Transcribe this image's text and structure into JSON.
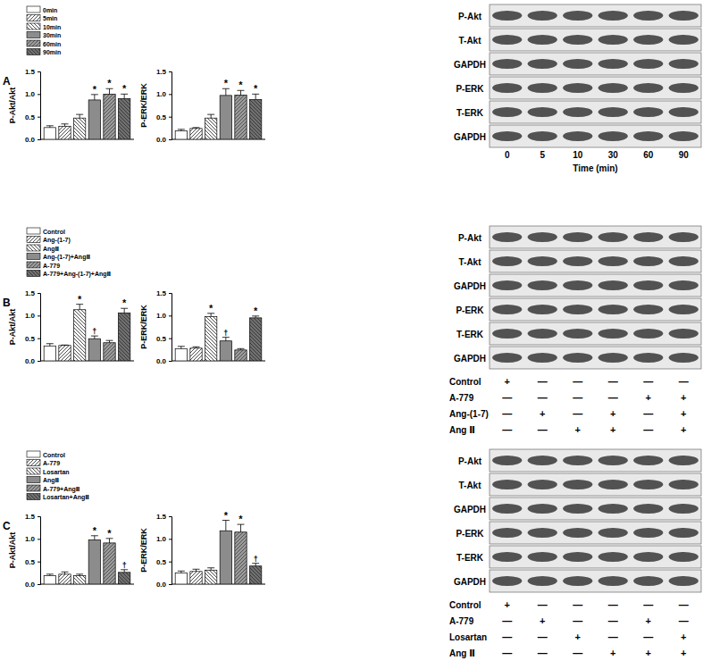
{
  "chart_data": [
    {
      "type": "bar",
      "ylabel": "P-Akt/Akt",
      "categories": [
        "0min",
        "5min",
        "10min",
        "30min",
        "60min",
        "90min"
      ],
      "values": [
        0.26,
        0.29,
        0.47,
        0.87,
        1.0,
        0.9
      ],
      "errors": [
        0.04,
        0.05,
        0.08,
        0.12,
        0.12,
        0.1
      ],
      "significance": [
        null,
        null,
        null,
        "*",
        "*",
        "*"
      ],
      "ylim": [
        0,
        1.5
      ],
      "yticks": [
        {
          "value": 0,
          "label": "0.0"
        },
        {
          "value": 0.5,
          "label": "0.5"
        },
        {
          "value": 1,
          "label": "1.0"
        },
        {
          "value": 1.5,
          "label": "1.5"
        }
      ],
      "legend": "upper left",
      "tick_labels": "y"
    },
    {
      "type": "bar",
      "ylabel": "P-ERK/ERK",
      "values": [
        0.19,
        0.24,
        0.47,
        0.97,
        0.98,
        0.88
      ],
      "errors": [
        0.03,
        0.02,
        0.08,
        0.15,
        0.1,
        0.12
      ],
      "significance": [
        null,
        null,
        null,
        "*",
        "*",
        "*"
      ],
      "ylim": [
        0,
        1.5
      ],
      "yticks": [
        {
          "value": 0,
          "label": "0.0"
        },
        {
          "value": 0.5,
          "label": "0.5"
        },
        {
          "value": 1,
          "label": "1.0"
        },
        {
          "value": 1.5,
          "label": "1.5"
        }
      ],
      "tick_labels": "y"
    },
    {
      "type": "bar",
      "ylabel": "P-Akt/Akt",
      "categories": [
        "Control",
        "Ang-(1-7)",
        "AngⅡ",
        "Ang-(1-7)+AngⅡ",
        "A-779",
        "A-779+Ang-(1-7)+AngⅡ"
      ],
      "values": [
        0.33,
        0.34,
        1.13,
        0.49,
        0.4,
        1.06
      ],
      "errors": [
        0.05,
        0.01,
        0.12,
        0.06,
        0.05,
        0.1
      ],
      "significance": [
        null,
        null,
        "*",
        "†",
        null,
        "*"
      ],
      "ylim": [
        0,
        1.5
      ],
      "yticks": [
        {
          "value": 0,
          "label": "0.0"
        },
        {
          "value": 0.5,
          "label": "0.5"
        },
        {
          "value": 1,
          "label": "1.0"
        },
        {
          "value": 1.5,
          "label": "1.5"
        }
      ],
      "legend": "upper left",
      "tick_labels": "y"
    },
    {
      "type": "bar",
      "ylabel": "P-ERK/ERK",
      "values": [
        0.27,
        0.28,
        0.98,
        0.44,
        0.24,
        0.95
      ],
      "errors": [
        0.05,
        0.03,
        0.07,
        0.08,
        0.03,
        0.04
      ],
      "significance": [
        null,
        null,
        "*",
        "†",
        null,
        "*"
      ],
      "ylim": [
        0,
        1.5
      ],
      "yticks": [
        {
          "value": 0,
          "label": "0.0"
        },
        {
          "value": 0.5,
          "label": "0.5"
        },
        {
          "value": 1,
          "label": "1.0"
        },
        {
          "value": 1.5,
          "label": "1.5"
        }
      ],
      "tick_labels": "y"
    },
    {
      "type": "bar",
      "ylabel": "P-Akt/Akt",
      "categories": [
        "Control",
        "A-779",
        "Losartan",
        "AngⅡ",
        "A-779+AngⅡ",
        "Losartan+AngⅡ"
      ],
      "values": [
        0.19,
        0.22,
        0.19,
        0.98,
        0.91,
        0.26
      ],
      "errors": [
        0.03,
        0.05,
        0.03,
        0.09,
        0.1,
        0.06
      ],
      "significance": [
        null,
        null,
        null,
        "*",
        "*",
        "†"
      ],
      "ylim": [
        0,
        1.5
      ],
      "yticks": [
        {
          "value": 0,
          "label": "0.0"
        },
        {
          "value": 0.5,
          "label": "0.5"
        },
        {
          "value": 1,
          "label": "1.0"
        },
        {
          "value": 1.5,
          "label": "1.5"
        }
      ],
      "legend": "upper left",
      "tick_labels": "y"
    },
    {
      "type": "bar",
      "ylabel": "P-ERK/ERK",
      "values": [
        0.25,
        0.28,
        0.31,
        1.18,
        1.15,
        0.4
      ],
      "errors": [
        0.04,
        0.05,
        0.05,
        0.23,
        0.17,
        0.06
      ],
      "significance": [
        null,
        null,
        null,
        "*",
        "*",
        "†"
      ],
      "ylim": [
        0,
        1.5
      ],
      "yticks": [
        {
          "value": 0,
          "label": "0.0"
        },
        {
          "value": 0.5,
          "label": "0.5"
        },
        {
          "value": 1,
          "label": "1.0"
        },
        {
          "value": 1.5,
          "label": "1.5"
        }
      ],
      "tick_labels": "y"
    }
  ],
  "panels": [
    {
      "letter": "A",
      "blot_rows": [
        "P-Akt",
        "T-Akt",
        "GAPDH",
        "P-ERK",
        "T-ERK",
        "GAPDH"
      ],
      "lanes": [
        "0",
        "5",
        "10",
        "30",
        "60",
        "90"
      ],
      "lane_title": "Time (min)"
    },
    {
      "letter": "B",
      "blot_rows": [
        "P-Akt",
        "T-Akt",
        "GAPDH",
        "P-ERK",
        "T-ERK",
        "GAPDH"
      ],
      "treatments": [
        {
          "label": "Control",
          "signs": [
            "+",
            "—",
            "—",
            "—",
            "—",
            "—"
          ]
        },
        {
          "label": "A-779",
          "signs": [
            "—",
            "—",
            "—",
            "—",
            "+",
            "+"
          ]
        },
        {
          "label": "Ang-(1-7)",
          "signs": [
            "—",
            "+",
            "—",
            "+",
            "—",
            "+"
          ]
        },
        {
          "label": "Ang Ⅱ",
          "signs": [
            "—",
            "—",
            "+",
            "+",
            "—",
            "+"
          ]
        }
      ]
    },
    {
      "letter": "C",
      "blot_rows": [
        "P-Akt",
        "T-Akt",
        "GAPDH",
        "P-ERK",
        "T-ERK",
        "GAPDH"
      ],
      "treatments": [
        {
          "label": "Control",
          "signs": [
            "+",
            "—",
            "—",
            "—",
            "—",
            "—"
          ]
        },
        {
          "label": "A-779",
          "signs": [
            "—",
            "+",
            "—",
            "—",
            "+",
            "—"
          ]
        },
        {
          "label": "Losartan",
          "signs": [
            "—",
            "—",
            "+",
            "—",
            "—",
            "+"
          ]
        },
        {
          "label": "Ang Ⅱ",
          "signs": [
            "—",
            "—",
            "—",
            "+",
            "+",
            "+"
          ]
        }
      ]
    }
  ]
}
